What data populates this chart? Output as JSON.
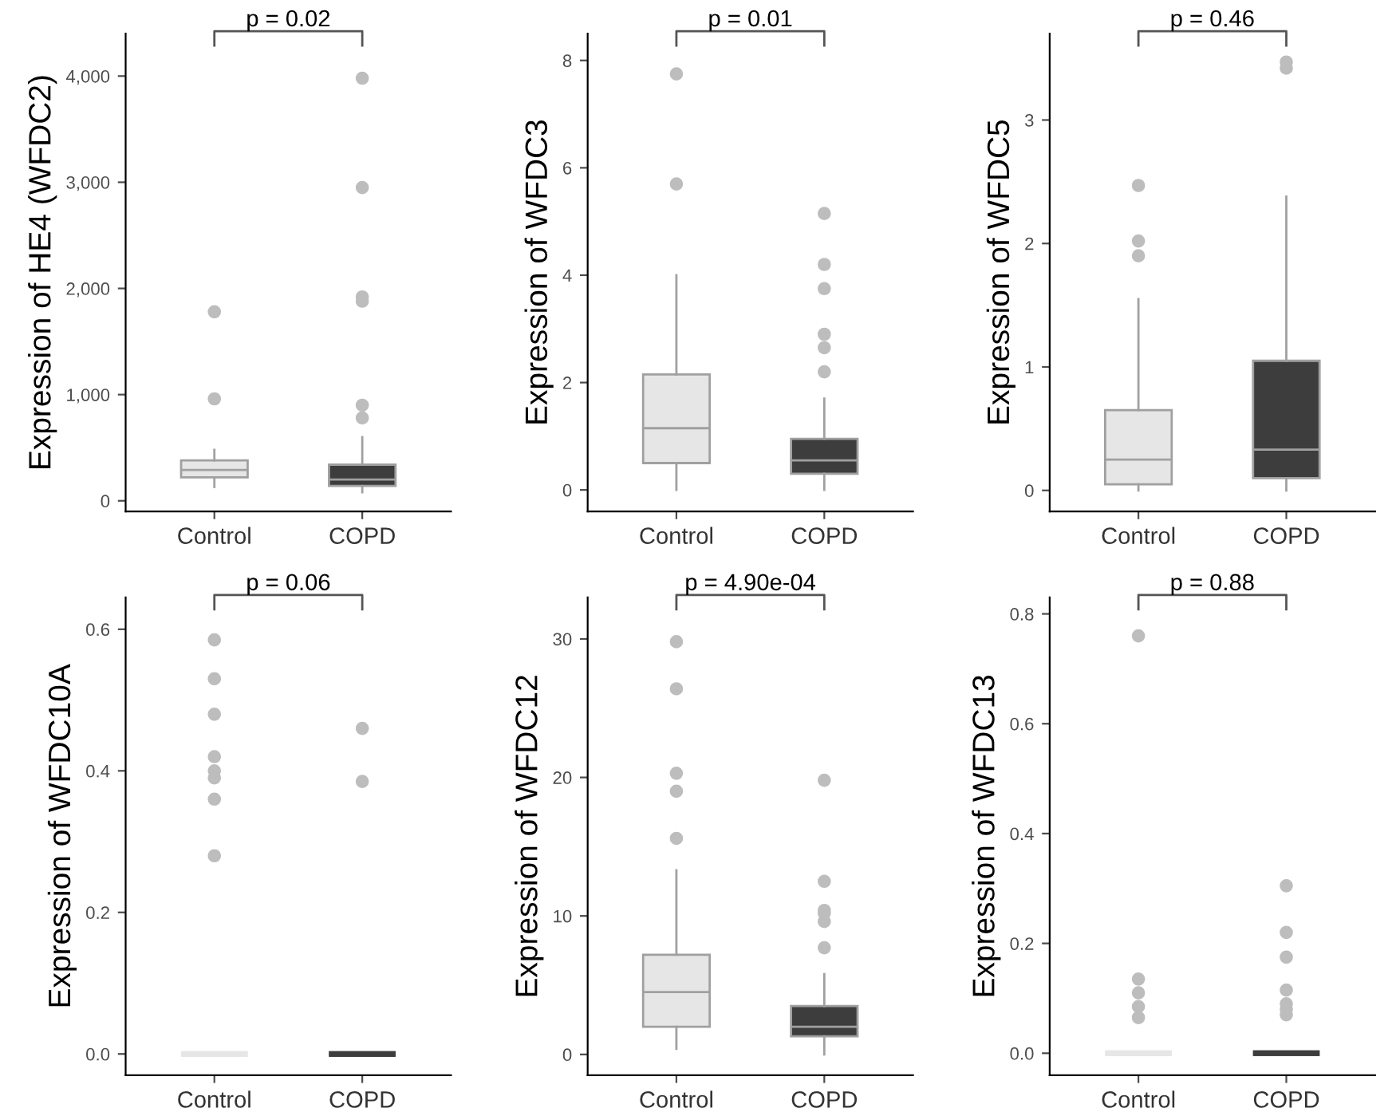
{
  "chart_data": [
    {
      "type": "box",
      "ylabel": "Expression of HE4 (WFDC2)",
      "categories": [
        "Control",
        "COPD"
      ],
      "colors": [
        "#e6e6e6",
        "#3d3d3d"
      ],
      "ylim": [
        -100,
        4400
      ],
      "yticks": [
        0,
        {
          "value": 1000,
          "label": "1,000"
        },
        {
          "value": 2000,
          "label": "2,000"
        },
        {
          "value": 3000,
          "label": "3,000"
        },
        {
          "value": 4000,
          "label": "4,000"
        }
      ],
      "grid": false,
      "annotations": [
        "p = 0.02"
      ],
      "boxes": [
        {
          "low": 130,
          "q1": 220,
          "median": 290,
          "q3": 380,
          "high": 480,
          "outliers": [
            960,
            1780
          ]
        },
        {
          "low": 80,
          "q1": 140,
          "median": 200,
          "q3": 340,
          "high": 600,
          "outliers": [
            780,
            900,
            1880,
            1920,
            2950,
            3980
          ]
        }
      ]
    },
    {
      "type": "box",
      "ylabel": "Expression of WFDC3",
      "categories": [
        "Control",
        "COPD"
      ],
      "colors": [
        "#e6e6e6",
        "#3d3d3d"
      ],
      "ylim": [
        -0.4,
        8.5
      ],
      "yticks": [
        0,
        2,
        4,
        6,
        8
      ],
      "grid": false,
      "annotations": [
        "p = 0.01"
      ],
      "boxes": [
        {
          "low": 0,
          "q1": 0.5,
          "median": 1.15,
          "q3": 2.15,
          "high": 4.0,
          "outliers": [
            5.7,
            7.75
          ]
        },
        {
          "low": 0,
          "q1": 0.3,
          "median": 0.55,
          "q3": 0.95,
          "high": 1.7,
          "outliers": [
            2.2,
            2.65,
            2.9,
            3.75,
            4.2,
            5.15
          ]
        }
      ]
    },
    {
      "type": "box",
      "ylabel": "Expression of WFDC5",
      "categories": [
        "Control",
        "COPD"
      ],
      "colors": [
        "#e6e6e6",
        "#3d3d3d"
      ],
      "ylim": [
        -0.17,
        3.7
      ],
      "yticks": [
        0,
        1,
        2,
        3
      ],
      "grid": false,
      "annotations": [
        "p = 0.46"
      ],
      "boxes": [
        {
          "low": 0,
          "q1": 0.05,
          "median": 0.25,
          "q3": 0.65,
          "high": 1.55,
          "outliers": [
            1.9,
            2.02,
            2.47
          ]
        },
        {
          "low": 0,
          "q1": 0.1,
          "median": 0.33,
          "q3": 1.05,
          "high": 2.38,
          "outliers": [
            3.42,
            3.47
          ]
        }
      ]
    },
    {
      "type": "box",
      "ylabel": "Expression of WFDC10A",
      "categories": [
        "Control",
        "COPD"
      ],
      "colors": [
        "#e6e6e6",
        "#3d3d3d"
      ],
      "ylim": [
        -0.03,
        0.645
      ],
      "yticks": [
        {
          "value": 0,
          "label": "0.0"
        },
        0.2,
        0.4,
        0.6
      ],
      "grid": false,
      "annotations": [
        "p = 0.06"
      ],
      "boxes": [
        {
          "low": 0,
          "q1": 0,
          "median": 0,
          "q3": 0,
          "high": 0,
          "outliers": [
            0.28,
            0.36,
            0.39,
            0.4,
            0.42,
            0.48,
            0.53,
            0.585
          ]
        },
        {
          "low": 0,
          "q1": 0,
          "median": 0,
          "q3": 0,
          "high": 0,
          "outliers": [
            0.385,
            0.46
          ]
        }
      ]
    },
    {
      "type": "box",
      "ylabel": "Expression of WFDC12",
      "categories": [
        "Control",
        "COPD"
      ],
      "colors": [
        "#e6e6e6",
        "#3d3d3d"
      ],
      "ylim": [
        -1.5,
        33
      ],
      "yticks": [
        0,
        10,
        20,
        30
      ],
      "grid": false,
      "annotations": [
        "p = 4.90e-04"
      ],
      "boxes": [
        {
          "low": 0.4,
          "q1": 2,
          "median": 4.5,
          "q3": 7.2,
          "high": 13.3,
          "outliers": [
            15.6,
            19,
            20.3,
            26.4,
            29.8
          ]
        },
        {
          "low": 0,
          "q1": 1.3,
          "median": 2.0,
          "q3": 3.5,
          "high": 5.8,
          "outliers": [
            7.7,
            9.6,
            10.2,
            10.4,
            12.5,
            19.8
          ]
        }
      ]
    },
    {
      "type": "box",
      "ylabel": "Expression of WFDC13",
      "categories": [
        "Control",
        "COPD"
      ],
      "colors": [
        "#e6e6e6",
        "#3d3d3d"
      ],
      "ylim": [
        -0.04,
        0.83
      ],
      "yticks": [
        {
          "value": 0,
          "label": "0.0"
        },
        0.2,
        0.4,
        0.6,
        0.8
      ],
      "grid": false,
      "annotations": [
        "p = 0.88"
      ],
      "boxes": [
        {
          "low": 0,
          "q1": 0,
          "median": 0,
          "q3": 0,
          "high": 0,
          "outliers": [
            0.065,
            0.085,
            0.11,
            0.135,
            0.76
          ]
        },
        {
          "low": 0,
          "q1": 0,
          "median": 0,
          "q3": 0,
          "high": 0,
          "outliers": [
            0.07,
            0.08,
            0.09,
            0.115,
            0.175,
            0.22,
            0.305
          ]
        }
      ]
    }
  ]
}
